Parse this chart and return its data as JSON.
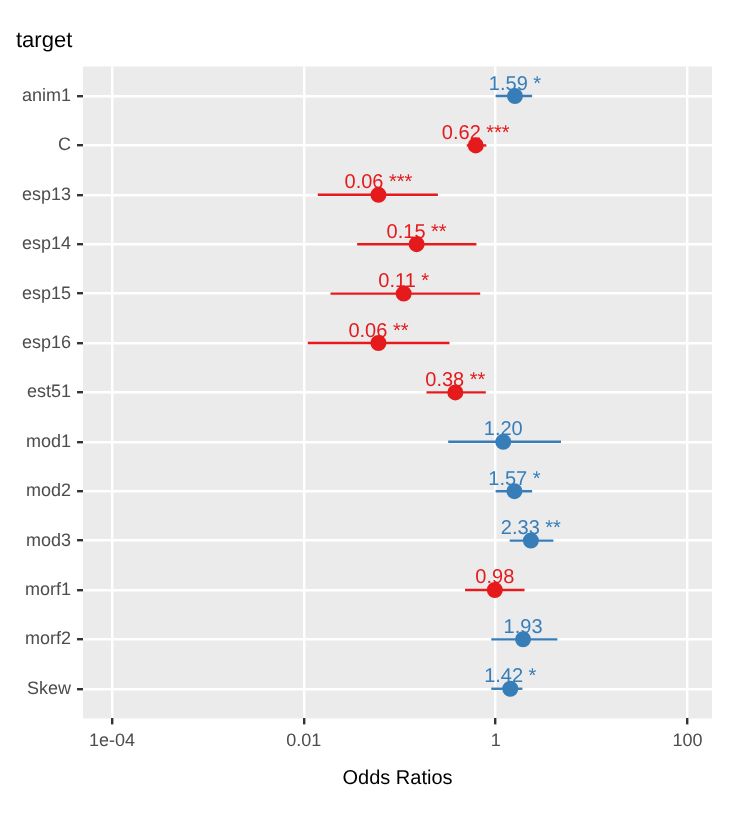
{
  "chart_data": {
    "type": "scatter",
    "title": "target",
    "xlabel": "Odds Ratios",
    "orientation": "horizontal",
    "log": "x",
    "grid": true,
    "legend": false,
    "marker": "circle",
    "categories": [
      "anim1",
      "C",
      "esp13",
      "esp14",
      "esp15",
      "esp16",
      "est51",
      "mod1",
      "mod2",
      "mod3",
      "morf1",
      "morf2",
      "Skew"
    ],
    "values": [
      1.59,
      0.62,
      0.06,
      0.15,
      0.11,
      0.06,
      0.38,
      1.2,
      1.57,
      2.33,
      0.98,
      1.93,
      1.42
    ],
    "colors": [
      "#377eb8",
      "#e41a1c",
      "#e41a1c",
      "#e41a1c",
      "#e41a1c",
      "#e41a1c",
      "#e41a1c",
      "#377eb8",
      "#377eb8",
      "#377eb8",
      "#e41a1c",
      "#377eb8",
      "#377eb8"
    ],
    "errors": [
      [
        1.0,
        2.4
      ],
      [
        0.5,
        0.8
      ],
      [
        0.014,
        0.25
      ],
      [
        0.036,
        0.63
      ],
      [
        0.019,
        0.69
      ],
      [
        0.011,
        0.33
      ],
      [
        0.19,
        0.79
      ],
      [
        0.32,
        4.8
      ],
      [
        1.0,
        2.4
      ],
      [
        1.4,
        4.0
      ],
      [
        0.48,
        2.0
      ],
      [
        0.9,
        4.4
      ],
      [
        0.9,
        1.9
      ]
    ],
    "value_labels": [
      "1.59 *",
      "0.62 ***",
      "0.06 ***",
      "0.15 **",
      "0.11 *",
      "0.06 **",
      "0.38 **",
      "1.20",
      "1.57 *",
      "2.33 **",
      "0.98",
      "1.93",
      "1.42 *"
    ],
    "xlim": [
      5e-05,
      180
    ],
    "xticks": [
      {
        "value": 0.0001,
        "label": "1e-04"
      },
      0.01,
      1,
      100
    ]
  }
}
